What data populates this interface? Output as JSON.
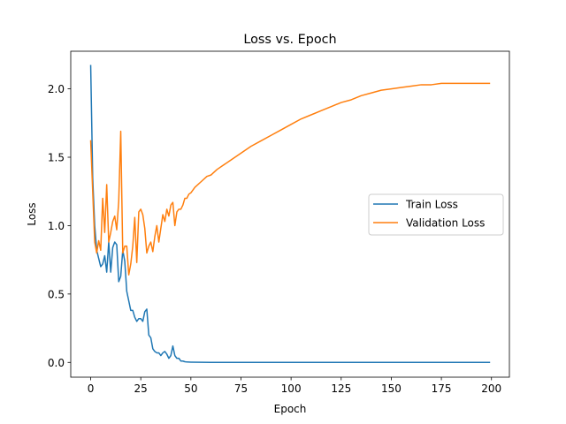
{
  "chart_data": {
    "type": "line",
    "title": "Loss vs. Epoch",
    "xlabel": "Epoch",
    "ylabel": "Loss",
    "xlim": [
      -9.95,
      208.95
    ],
    "ylim": [
      -0.108,
      2.275
    ],
    "xticks": [
      0,
      25,
      50,
      75,
      100,
      125,
      150,
      175,
      200
    ],
    "yticks": [
      0.0,
      0.5,
      1.0,
      1.5,
      2.0
    ],
    "xtick_labels": [
      "0",
      "25",
      "50",
      "75",
      "100",
      "125",
      "150",
      "175",
      "200"
    ],
    "ytick_labels": [
      "0.0",
      "0.5",
      "1.0",
      "1.5",
      "2.0"
    ],
    "grid": false,
    "legend_position": "center-right",
    "series": [
      {
        "name": "Train Loss",
        "color": "#1f77b4",
        "points": [
          [
            0,
            2.17
          ],
          [
            1,
            1.35
          ],
          [
            2,
            1.0
          ],
          [
            3,
            0.82
          ],
          [
            4,
            0.76
          ],
          [
            5,
            0.7
          ],
          [
            6,
            0.72
          ],
          [
            7,
            0.78
          ],
          [
            8,
            0.66
          ],
          [
            9,
            0.88
          ],
          [
            10,
            0.66
          ],
          [
            11,
            0.84
          ],
          [
            12,
            0.88
          ],
          [
            13,
            0.86
          ],
          [
            14,
            0.59
          ],
          [
            15,
            0.63
          ],
          [
            16,
            0.82
          ],
          [
            17,
            0.74
          ],
          [
            18,
            0.52
          ],
          [
            19,
            0.45
          ],
          [
            20,
            0.38
          ],
          [
            21,
            0.38
          ],
          [
            22,
            0.33
          ],
          [
            23,
            0.3
          ],
          [
            24,
            0.32
          ],
          [
            25,
            0.32
          ],
          [
            26,
            0.3
          ],
          [
            27,
            0.37
          ],
          [
            28,
            0.39
          ],
          [
            29,
            0.2
          ],
          [
            30,
            0.18
          ],
          [
            31,
            0.1
          ],
          [
            32,
            0.08
          ],
          [
            33,
            0.07
          ],
          [
            34,
            0.07
          ],
          [
            35,
            0.05
          ],
          [
            36,
            0.07
          ],
          [
            37,
            0.08
          ],
          [
            38,
            0.06
          ],
          [
            39,
            0.03
          ],
          [
            40,
            0.05
          ],
          [
            41,
            0.12
          ],
          [
            42,
            0.05
          ],
          [
            43,
            0.03
          ],
          [
            44,
            0.03
          ],
          [
            45,
            0.01
          ],
          [
            46,
            0.01
          ],
          [
            47,
            0.005
          ],
          [
            48,
            0.003
          ],
          [
            50,
            0.002
          ],
          [
            55,
            0.001
          ],
          [
            60,
            0.0
          ],
          [
            70,
            0.0
          ],
          [
            80,
            0.0
          ],
          [
            100,
            0.0
          ],
          [
            120,
            0.0
          ],
          [
            140,
            0.0
          ],
          [
            160,
            0.0
          ],
          [
            180,
            0.0
          ],
          [
            199,
            0.0
          ]
        ]
      },
      {
        "name": "Validation Loss",
        "color": "#ff7f0e",
        "points": [
          [
            0,
            1.62
          ],
          [
            1,
            1.25
          ],
          [
            2,
            0.88
          ],
          [
            3,
            0.8
          ],
          [
            4,
            0.89
          ],
          [
            5,
            0.82
          ],
          [
            6,
            1.2
          ],
          [
            7,
            0.95
          ],
          [
            8,
            1.3
          ],
          [
            9,
            0.88
          ],
          [
            10,
            0.95
          ],
          [
            11,
            1.03
          ],
          [
            12,
            1.07
          ],
          [
            13,
            0.97
          ],
          [
            14,
            1.18
          ],
          [
            15,
            1.69
          ],
          [
            16,
            0.8
          ],
          [
            17,
            0.85
          ],
          [
            18,
            0.85
          ],
          [
            19,
            0.64
          ],
          [
            20,
            0.72
          ],
          [
            21,
            0.85
          ],
          [
            22,
            1.06
          ],
          [
            23,
            0.73
          ],
          [
            24,
            1.1
          ],
          [
            25,
            1.12
          ],
          [
            26,
            1.08
          ],
          [
            27,
            0.98
          ],
          [
            28,
            0.8
          ],
          [
            29,
            0.85
          ],
          [
            30,
            0.88
          ],
          [
            31,
            0.81
          ],
          [
            32,
            0.92
          ],
          [
            33,
            1.0
          ],
          [
            34,
            0.88
          ],
          [
            35,
            0.98
          ],
          [
            36,
            1.08
          ],
          [
            37,
            1.03
          ],
          [
            38,
            1.12
          ],
          [
            39,
            1.07
          ],
          [
            40,
            1.15
          ],
          [
            41,
            1.17
          ],
          [
            42,
            1.0
          ],
          [
            43,
            1.1
          ],
          [
            44,
            1.12
          ],
          [
            45,
            1.12
          ],
          [
            46,
            1.15
          ],
          [
            47,
            1.2
          ],
          [
            48,
            1.2
          ],
          [
            49,
            1.23
          ],
          [
            50,
            1.24
          ],
          [
            52,
            1.28
          ],
          [
            55,
            1.32
          ],
          [
            58,
            1.36
          ],
          [
            60,
            1.37
          ],
          [
            63,
            1.41
          ],
          [
            66,
            1.44
          ],
          [
            70,
            1.48
          ],
          [
            75,
            1.53
          ],
          [
            80,
            1.58
          ],
          [
            85,
            1.62
          ],
          [
            90,
            1.66
          ],
          [
            95,
            1.7
          ],
          [
            100,
            1.74
          ],
          [
            105,
            1.78
          ],
          [
            110,
            1.81
          ],
          [
            115,
            1.84
          ],
          [
            120,
            1.87
          ],
          [
            125,
            1.9
          ],
          [
            130,
            1.92
          ],
          [
            135,
            1.95
          ],
          [
            140,
            1.97
          ],
          [
            145,
            1.99
          ],
          [
            150,
            2.0
          ],
          [
            155,
            2.01
          ],
          [
            160,
            2.02
          ],
          [
            165,
            2.03
          ],
          [
            170,
            2.03
          ],
          [
            175,
            2.04
          ],
          [
            180,
            2.04
          ],
          [
            185,
            2.04
          ],
          [
            190,
            2.04
          ],
          [
            195,
            2.04
          ],
          [
            199,
            2.04
          ]
        ]
      }
    ]
  }
}
